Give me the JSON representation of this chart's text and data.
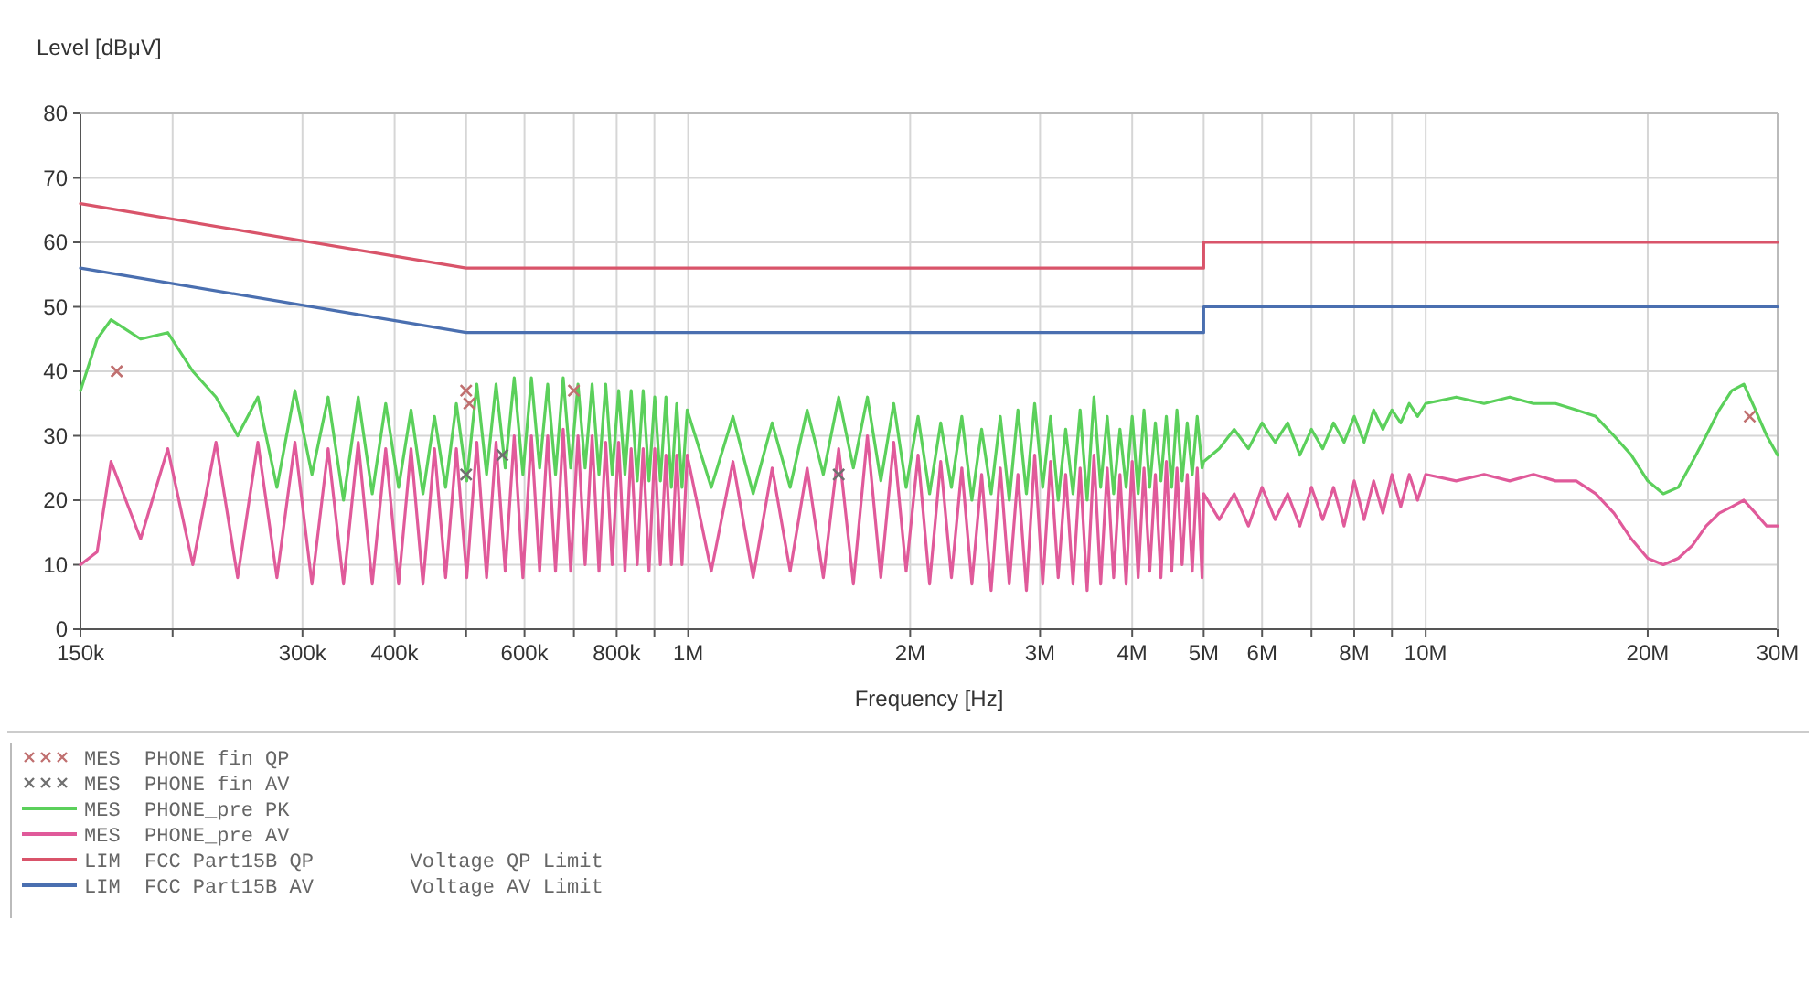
{
  "chart_data": {
    "type": "line",
    "xlabel": "Frequency [Hz]",
    "ylabel": "Level [dBμV]",
    "log": "x",
    "grid": true,
    "legend": "bottom",
    "xlim": [
      150000,
      30000000
    ],
    "xticks": [
      {
        "value": 150000,
        "label": "150k"
      },
      {
        "value": 200000,
        "label": null
      },
      {
        "value": 300000,
        "label": "300k"
      },
      {
        "value": 400000,
        "label": "400k"
      },
      {
        "value": 500000,
        "label": null
      },
      {
        "value": 600000,
        "label": "600k"
      },
      {
        "value": 700000,
        "label": null
      },
      {
        "value": 800000,
        "label": "800k"
      },
      {
        "value": 900000,
        "label": null
      },
      {
        "value": 1000000,
        "label": "1M"
      },
      {
        "value": 2000000,
        "label": "2M"
      },
      {
        "value": 3000000,
        "label": "3M"
      },
      {
        "value": 4000000,
        "label": "4M"
      },
      {
        "value": 5000000,
        "label": "5M"
      },
      {
        "value": 6000000,
        "label": "6M"
      },
      {
        "value": 7000000,
        "label": null
      },
      {
        "value": 8000000,
        "label": "8M"
      },
      {
        "value": 9000000,
        "label": null
      },
      {
        "value": 10000000,
        "label": "10M"
      },
      {
        "value": 20000000,
        "label": "20M"
      },
      {
        "value": 30000000,
        "label": "30M"
      }
    ],
    "ylim": [
      0,
      80
    ],
    "yticks": [
      0,
      10,
      20,
      30,
      40,
      50,
      60,
      70,
      80
    ],
    "x": [
      150000,
      158000,
      165000,
      181000,
      197000,
      213000,
      229000,
      245000,
      261000,
      277000,
      293000,
      309000,
      325000,
      341000,
      357000,
      373000,
      389000,
      405000,
      421000,
      437000,
      453000,
      469000,
      485000,
      501000,
      517000,
      533000,
      549000,
      565000,
      581000,
      597000,
      613000,
      629000,
      645000,
      661000,
      677000,
      693000,
      709000,
      725000,
      741000,
      757000,
      773000,
      789000,
      805000,
      821000,
      837000,
      853000,
      869000,
      885000,
      901000,
      917000,
      933000,
      949000,
      965000,
      981000,
      997000,
      1075000,
      1150000,
      1225000,
      1300000,
      1375000,
      1450000,
      1525000,
      1600000,
      1675000,
      1750000,
      1825000,
      1900000,
      1975000,
      2050000,
      2125000,
      2200000,
      2275000,
      2350000,
      2425000,
      2500000,
      2575000,
      2650000,
      2725000,
      2800000,
      2875000,
      2950000,
      3025000,
      3100000,
      3175000,
      3250000,
      3325000,
      3400000,
      3475000,
      3550000,
      3625000,
      3700000,
      3775000,
      3850000,
      3925000,
      4000000,
      4075000,
      4150000,
      4225000,
      4300000,
      4375000,
      4450000,
      4525000,
      4600000,
      4675000,
      4750000,
      4825000,
      4900000,
      4975000,
      5000000,
      5250000,
      5500000,
      5750000,
      6000000,
      6250000,
      6500000,
      6750000,
      7000000,
      7250000,
      7500000,
      7750000,
      8000000,
      8250000,
      8500000,
      8750000,
      9000000,
      9250000,
      9500000,
      9750000,
      10000000,
      11000000,
      12000000,
      13000000,
      14000000,
      15000000,
      16000000,
      17000000,
      18000000,
      19000000,
      20000000,
      21000000,
      22000000,
      23000000,
      24000000,
      25000000,
      26000000,
      27000000,
      28000000,
      29000000,
      30000000
    ],
    "series": [
      {
        "name": "MES  PHONE fin QP",
        "type": "scatter",
        "marker": "cross",
        "color": "#c07070",
        "x": [
          168000,
          500000,
          505000,
          700000,
          27500000
        ],
        "values": [
          40,
          37,
          35,
          37,
          33
        ]
      },
      {
        "name": "MES  PHONE fin AV",
        "type": "scatter",
        "marker": "cross",
        "color": "#707070",
        "x": [
          500000,
          560000,
          1600000
        ],
        "values": [
          24,
          27,
          24
        ]
      },
      {
        "name": "MES  PHONE_pre PK",
        "color": "#5bd05b",
        "values": [
          37,
          45,
          48,
          45,
          46,
          40,
          36,
          30,
          36,
          22,
          37,
          24,
          36,
          20,
          36,
          21,
          35,
          22,
          34,
          21,
          33,
          22,
          35,
          23,
          38,
          24,
          38,
          25,
          39,
          24,
          39,
          25,
          38,
          24,
          39,
          25,
          38,
          25,
          38,
          24,
          38,
          24,
          37,
          24,
          37,
          23,
          37,
          23,
          36,
          23,
          36,
          22,
          35,
          22,
          34,
          22,
          33,
          21,
          32,
          22,
          34,
          24,
          36,
          25,
          36,
          23,
          35,
          22,
          33,
          21,
          32,
          22,
          33,
          20,
          31,
          21,
          33,
          20,
          34,
          21,
          35,
          22,
          33,
          20,
          31,
          21,
          34,
          20,
          36,
          22,
          33,
          21,
          31,
          22,
          33,
          21,
          34,
          22,
          32,
          23,
          33,
          22,
          34,
          23,
          32,
          24,
          33,
          25,
          26,
          28,
          31,
          28,
          32,
          29,
          32,
          27,
          31,
          28,
          32,
          29,
          33,
          29,
          34,
          31,
          34,
          32,
          35,
          33,
          35,
          36,
          35,
          36,
          35,
          35,
          34,
          33,
          30,
          27,
          23,
          21,
          22,
          26,
          30,
          34,
          37,
          38,
          34,
          30,
          27
        ]
      },
      {
        "name": "MES  PHONE_pre AV",
        "color": "#e05a9a",
        "values": [
          10,
          12,
          26,
          14,
          28,
          10,
          29,
          8,
          29,
          8,
          29,
          7,
          28,
          7,
          29,
          7,
          28,
          7,
          28,
          7,
          28,
          8,
          28,
          8,
          29,
          8,
          29,
          9,
          30,
          8,
          30,
          9,
          30,
          9,
          31,
          9,
          30,
          10,
          30,
          9,
          29,
          10,
          29,
          9,
          28,
          10,
          28,
          9,
          28,
          10,
          27,
          10,
          27,
          10,
          27,
          9,
          26,
          8,
          25,
          9,
          25,
          8,
          28,
          7,
          30,
          8,
          29,
          9,
          27,
          7,
          26,
          8,
          25,
          7,
          24,
          6,
          25,
          7,
          24,
          6,
          27,
          7,
          26,
          8,
          24,
          7,
          25,
          6,
          27,
          7,
          25,
          8,
          24,
          7,
          26,
          8,
          25,
          9,
          24,
          8,
          26,
          9,
          25,
          10,
          24,
          9,
          25,
          8,
          21,
          17,
          21,
          16,
          22,
          17,
          21,
          16,
          22,
          17,
          22,
          16,
          23,
          17,
          23,
          18,
          24,
          19,
          24,
          20,
          24,
          23,
          24,
          23,
          24,
          23,
          23,
          21,
          18,
          14,
          11,
          10,
          11,
          13,
          16,
          18,
          19,
          20,
          18,
          16,
          16
        ]
      },
      {
        "name": "LIM  FCC Part15B QP        Voltage QP Limit",
        "color": "#d9546a",
        "x": [
          150000,
          500000,
          5000000,
          5000000,
          30000000
        ],
        "values": [
          66,
          56,
          56,
          60,
          60
        ]
      },
      {
        "name": "LIM  FCC Part15B AV        Voltage AV Limit",
        "color": "#4a6fb0",
        "x": [
          150000,
          500000,
          5000000,
          5000000,
          30000000
        ],
        "values": [
          56,
          46,
          46,
          50,
          50
        ]
      }
    ]
  }
}
